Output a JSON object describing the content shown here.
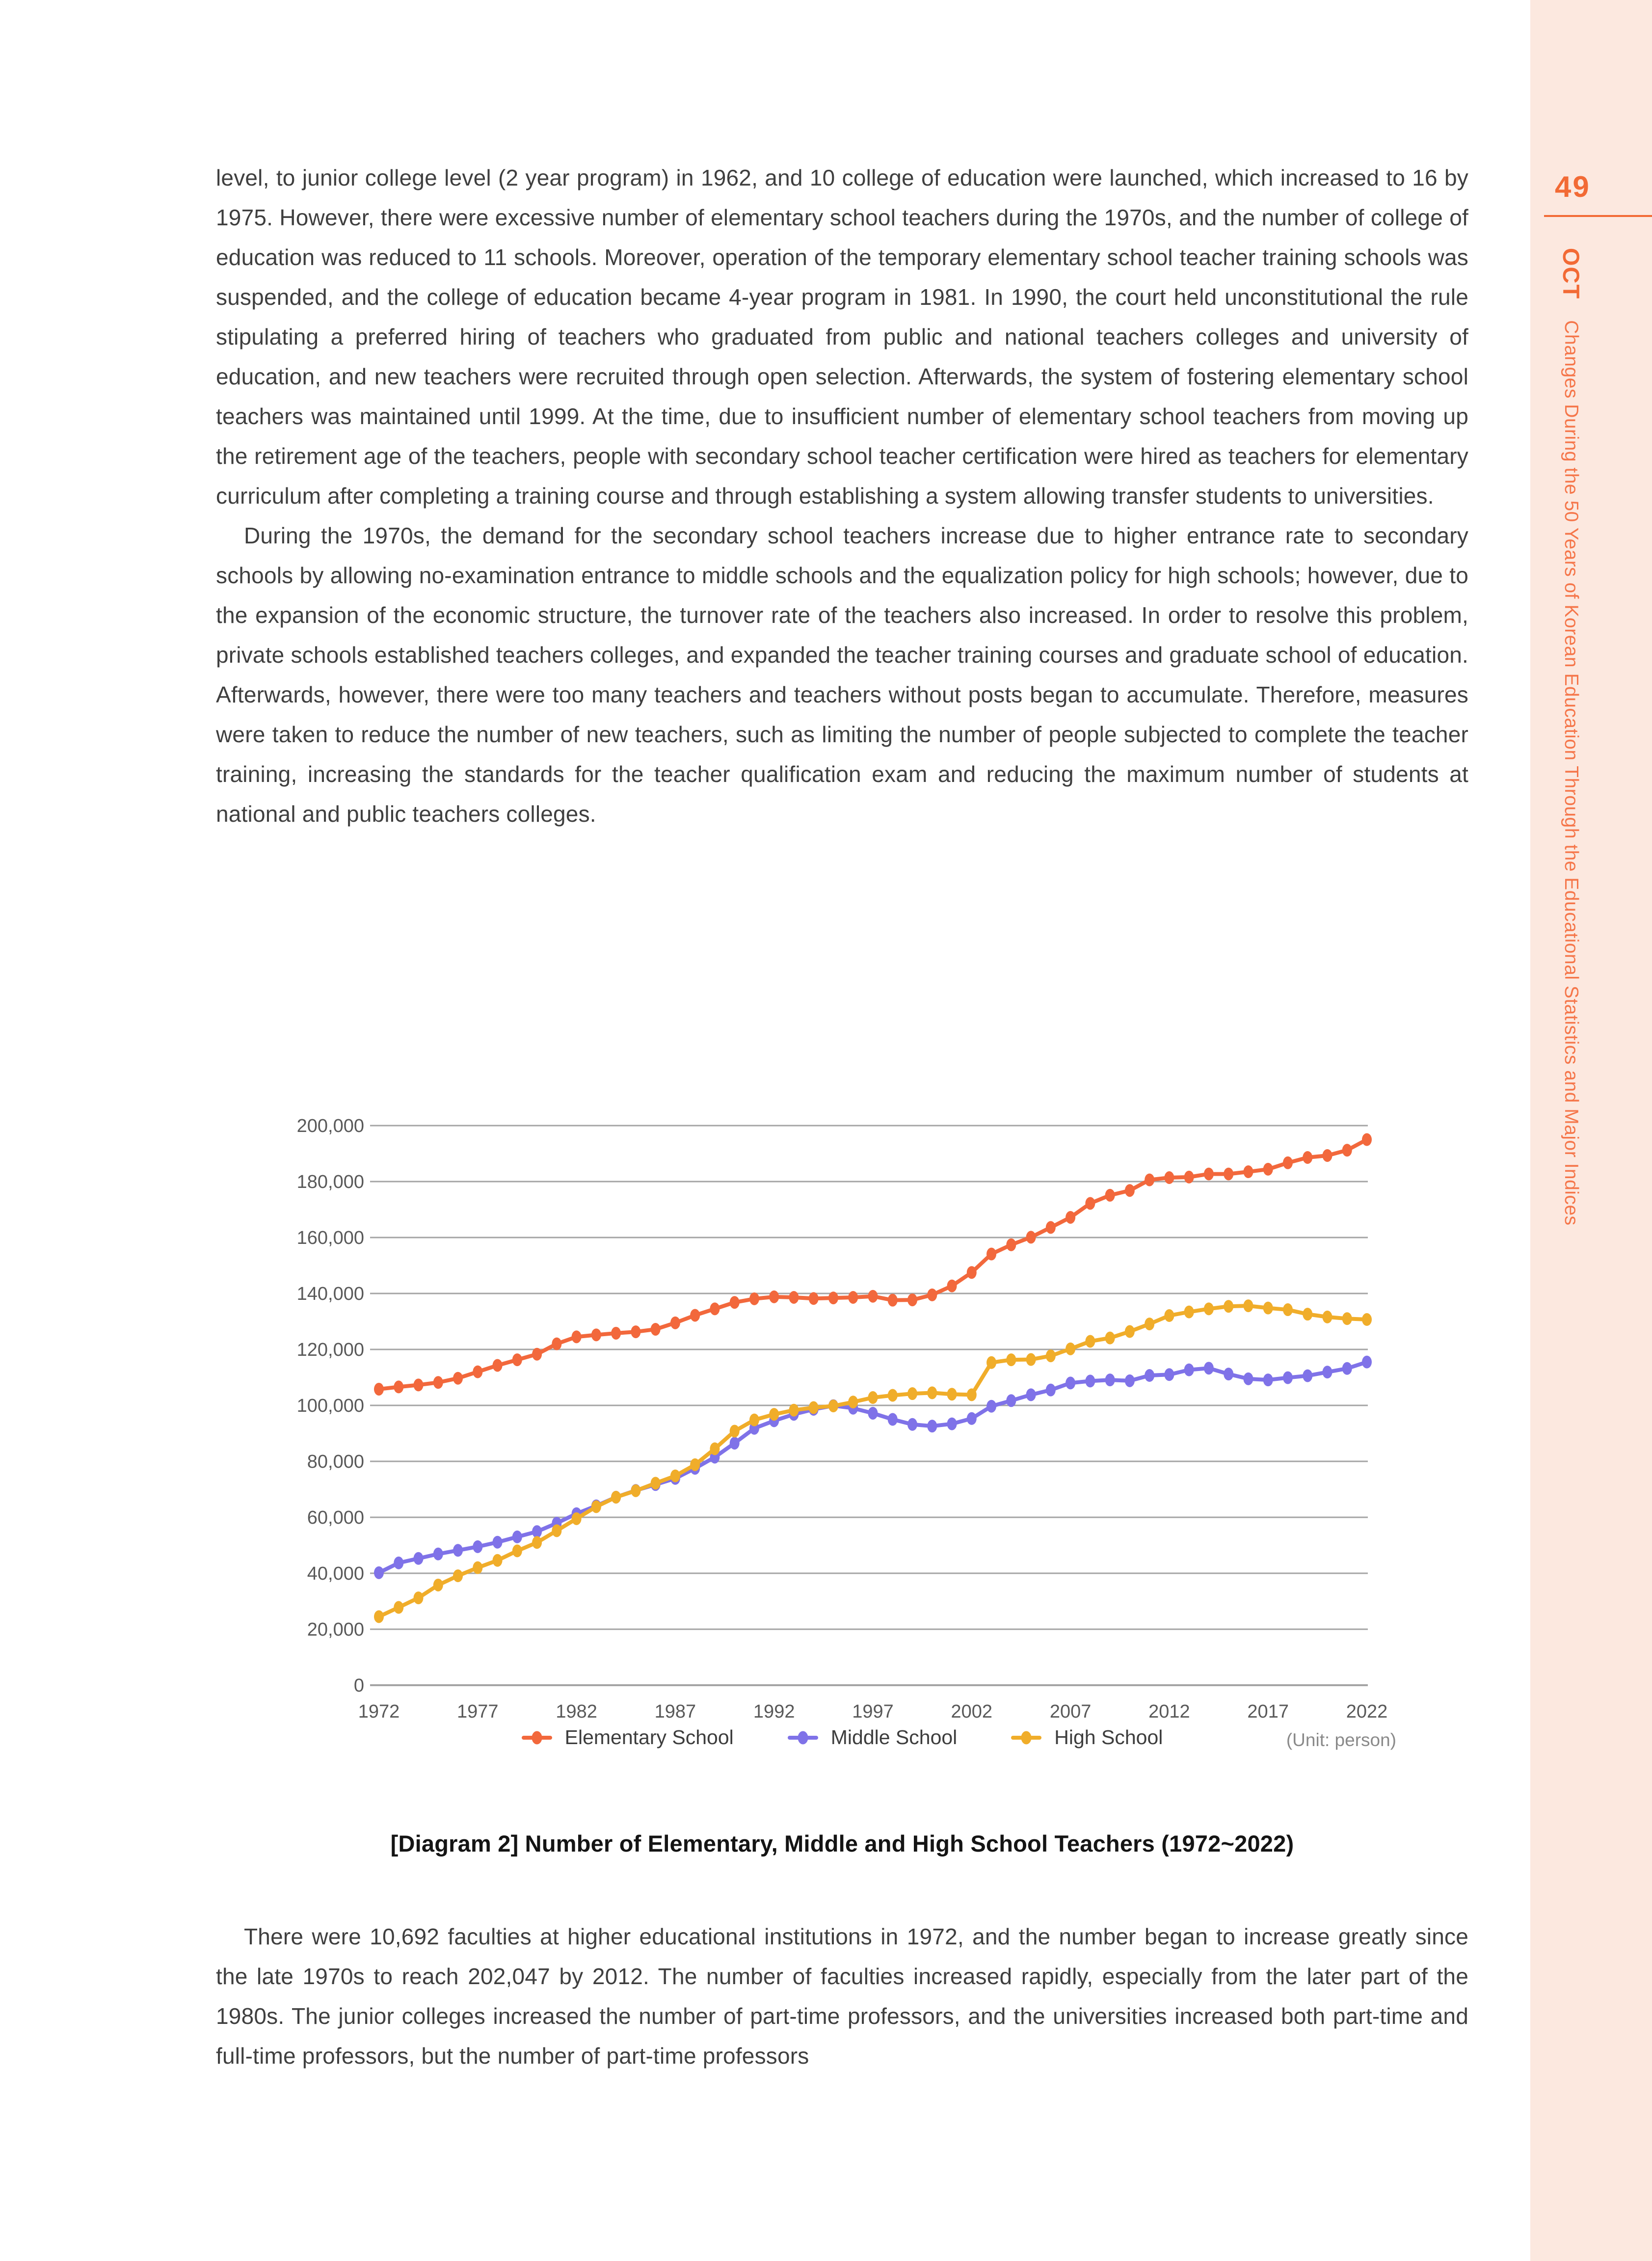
{
  "sidebar": {
    "page_number": "49",
    "chapter_tag": "OCT",
    "chapter_title": "Changes During the 50 Years of Korean Education Through the Educational Statistics and Major Indices",
    "accent_color": "#f26a35",
    "title_color": "#f5764a",
    "background_color": "#fce8df"
  },
  "content": {
    "paragraph1": "level, to junior college level (2 year program) in 1962, and 10 college of education were launched, which increased to 16 by 1975. However, there were excessive number of elementary school teachers during the 1970s, and the number of college of education was reduced to 11 schools. Moreover, operation of the temporary elementary school teacher training schools was suspended, and the college of education became 4-year program in 1981. In 1990, the court held unconstitutional the rule stipulating a preferred hiring of teachers who graduated from public and national teachers colleges and university of education, and new teachers were recruited through open selection. Afterwards, the system of fostering elementary school teachers was maintained until 1999. At the time, due to insufficient number of elementary school teachers from moving up the retirement age of the teachers, people with secondary school teacher certification were hired as teachers for elementary curriculum after completing a training course and through establishing a system allowing transfer students to universities.",
    "paragraph2": "During the 1970s, the demand for the secondary school teachers increase due to higher entrance rate to secondary schools by allowing no-examination entrance to middle schools and the equalization policy for high schools; however, due to the expansion of the economic structure, the turnover rate of the teachers also increased. In order to resolve this problem, private schools established teachers colleges, and expanded the teacher training courses and graduate school of education. Afterwards, however, there were too many teachers and teachers without posts began to accumulate. Therefore, measures were taken to reduce the number of new teachers, such as limiting the number of people subjected to complete the teacher training, increasing the standards for the teacher qualification exam and reducing the maximum number of students at national and public teachers colleges.",
    "caption": "[Diagram 2] Number of Elementary, Middle and High School Teachers (1972~2022)",
    "paragraph3": "There were 10,692 faculties at higher educational institutions in 1972, and the number began to increase greatly since the late 1970s to reach 202,047 by 2012. The number of faculties increased rapidly, especially from the later part of the 1980s. The junior colleges increased the number of part-time professors, and the universities increased both part-time and full-time professors, but the number of part-time professors"
  },
  "chart_data": {
    "type": "line",
    "title": "",
    "unit_note": "(Unit: person)",
    "xlabel": "",
    "ylabel": "",
    "ylim": [
      0,
      200000
    ],
    "y_tick_interval": 20000,
    "x_tick_interval": 5,
    "grid": "horizontal",
    "legend_position": "bottom",
    "grid_color": "#a5a5a5",
    "tick_label_color": "#595959",
    "x": [
      1972,
      1973,
      1974,
      1975,
      1976,
      1977,
      1978,
      1979,
      1980,
      1981,
      1982,
      1983,
      1984,
      1985,
      1986,
      1987,
      1988,
      1989,
      1990,
      1991,
      1992,
      1993,
      1994,
      1995,
      1996,
      1997,
      1998,
      1999,
      2000,
      2001,
      2002,
      2003,
      2004,
      2005,
      2006,
      2007,
      2008,
      2009,
      2010,
      2011,
      2012,
      2013,
      2014,
      2015,
      2016,
      2017,
      2018,
      2019,
      2020,
      2021,
      2022
    ],
    "series": [
      {
        "name": "Elementary School",
        "color": "#f2683c",
        "values": [
          105800,
          106600,
          107300,
          108200,
          109700,
          112000,
          114300,
          116300,
          118300,
          122000,
          124500,
          125200,
          125800,
          126300,
          127200,
          129500,
          132200,
          134500,
          136800,
          138100,
          138800,
          138600,
          138200,
          138400,
          138600,
          139000,
          137600,
          137700,
          139500,
          142700,
          147500,
          154100,
          157400,
          160100,
          163600,
          167200,
          172200,
          175100,
          176800,
          180600,
          181400,
          181600,
          182700,
          182700,
          183500,
          184400,
          186700,
          188600,
          189300,
          191200,
          195000
        ]
      },
      {
        "name": "Middle School",
        "color": "#7f72e8",
        "values": [
          40200,
          43700,
          45300,
          46900,
          48200,
          49500,
          51100,
          53000,
          54900,
          57900,
          61300,
          64100,
          67200,
          69600,
          71700,
          73900,
          77500,
          81500,
          86500,
          91800,
          94500,
          96800,
          98600,
          99900,
          99000,
          97200,
          95000,
          93200,
          92600,
          93400,
          95300,
          99700,
          101700,
          103800,
          105500,
          108000,
          108700,
          109100,
          108800,
          110700,
          111000,
          112700,
          113300,
          111200,
          109500,
          109100,
          109900,
          110600,
          111900,
          113200,
          115500
        ]
      },
      {
        "name": "High School",
        "color": "#f0ad2a",
        "values": [
          24500,
          27800,
          31200,
          35800,
          39100,
          42000,
          44600,
          48000,
          51000,
          55200,
          59500,
          63800,
          67200,
          69500,
          72200,
          74800,
          78800,
          84500,
          90800,
          94800,
          96800,
          98300,
          99200,
          99800,
          101200,
          102800,
          103600,
          104200,
          104500,
          104000,
          103800,
          115300,
          116300,
          116400,
          117700,
          120200,
          122900,
          124100,
          126400,
          129100,
          132100,
          133400,
          134500,
          135400,
          135600,
          134800,
          134200,
          132600,
          131600,
          131000,
          130700
        ]
      }
    ]
  }
}
